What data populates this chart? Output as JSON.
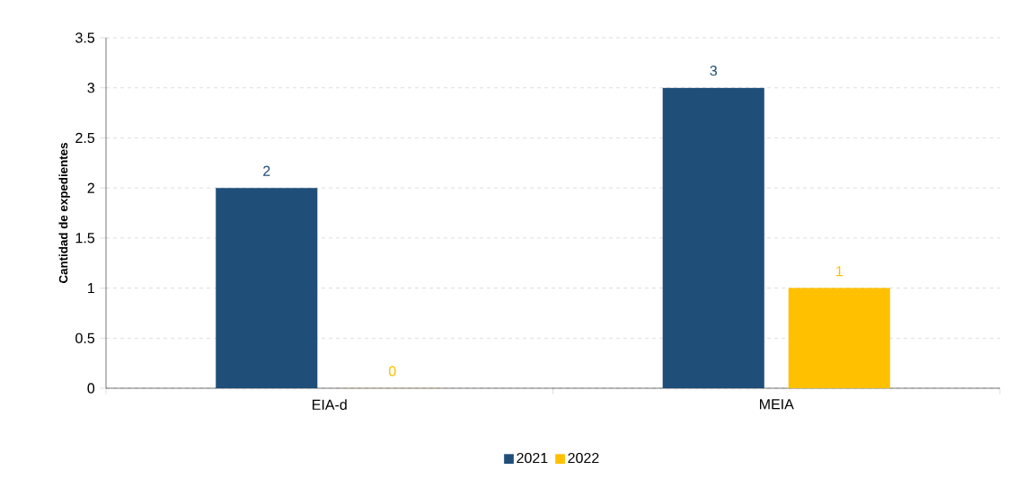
{
  "chart_data": {
    "type": "bar",
    "ylabel": "Cantidad de expedientes",
    "categories": [
      "EIA-d",
      "MEIA"
    ],
    "series": [
      {
        "name": "2021",
        "color": "#1f4e79",
        "values": [
          2,
          3
        ]
      },
      {
        "name": "2022",
        "color": "#ffc000",
        "values": [
          0,
          1
        ]
      }
    ],
    "ylim": [
      0,
      3.5
    ],
    "yticks": [
      0,
      0.5,
      1,
      1.5,
      2,
      2.5,
      3,
      3.5
    ],
    "grid": "y",
    "legend": "bottom",
    "data_labels": true
  }
}
